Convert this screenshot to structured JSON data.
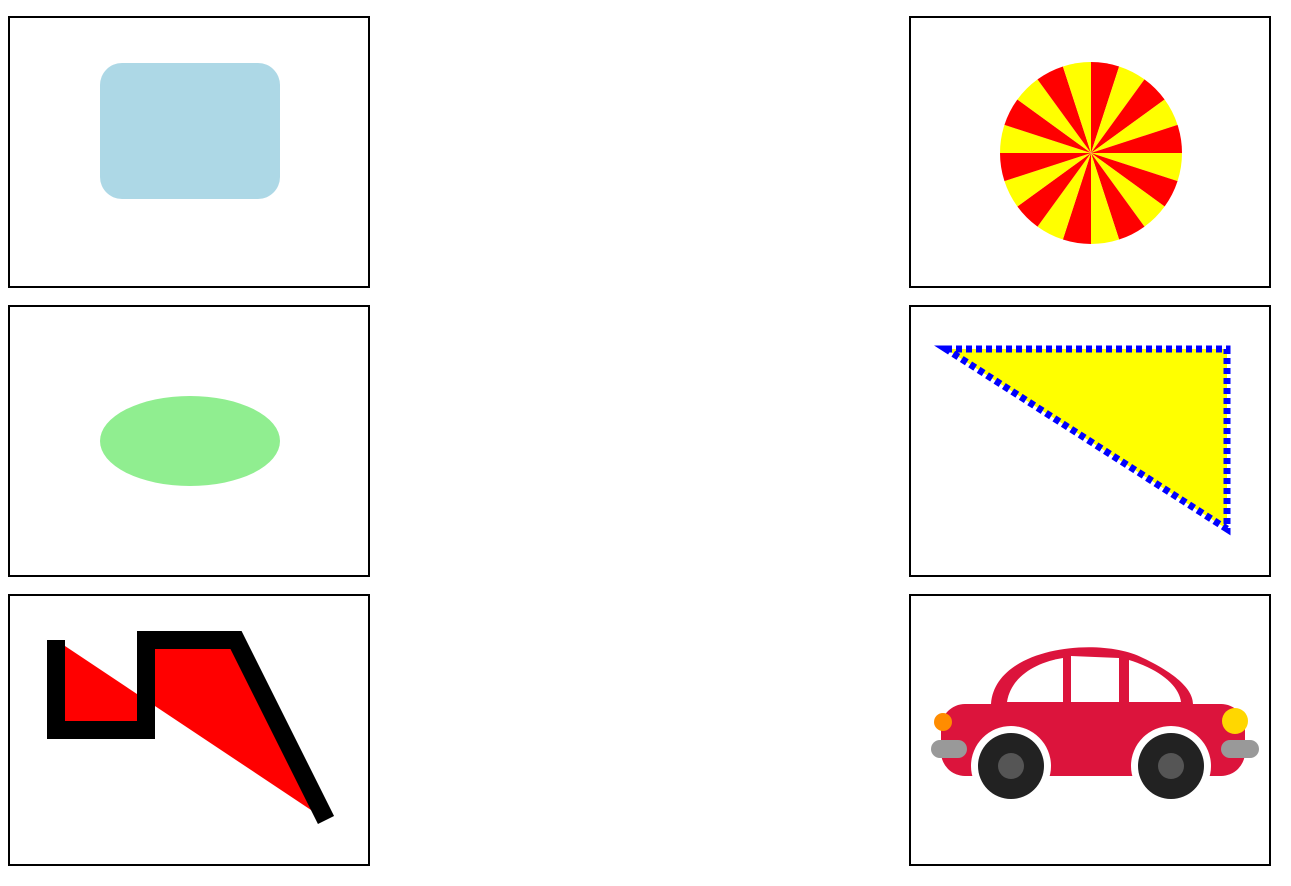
{
  "panels": [
    {
      "id": "rounded-rectangle",
      "fill": "#add8e6"
    },
    {
      "id": "pinwheel-circle",
      "colors": [
        "#ff0000",
        "#ffff00"
      ],
      "segments": 20
    },
    {
      "id": "ellipse",
      "fill": "#90ee90"
    },
    {
      "id": "dotted-triangle",
      "fill": "#ffff00",
      "stroke": "#0000ff"
    },
    {
      "id": "zigzag-polyline",
      "fill": "#ff0000",
      "stroke": "#000000"
    },
    {
      "id": "car",
      "body": "#dc143c",
      "wheel": "#222222",
      "hub": "#555555",
      "bumper": "#999999",
      "headlight": "#ffd700",
      "indicator": "#ff8c00"
    }
  ]
}
